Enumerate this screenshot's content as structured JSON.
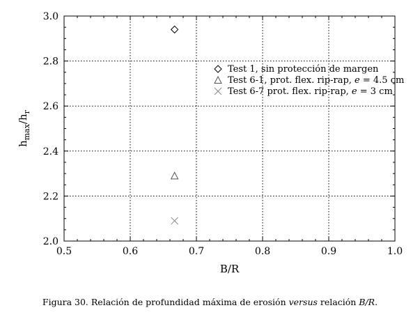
{
  "chart_data": {
    "type": "scatter",
    "title": "",
    "xlabel": "B/R",
    "ylabel": {
      "base": "h",
      "sub1": "max",
      "sep": "/h",
      "sub2": "r"
    },
    "xlim": [
      0.5,
      1.0
    ],
    "ylim": [
      2.0,
      3.0
    ],
    "xticks": [
      0.5,
      0.6,
      0.7,
      0.8,
      0.9,
      1.0
    ],
    "xtick_labels": [
      "0.5",
      "0.6",
      "0.7",
      "0.8",
      "0.9",
      "1.0"
    ],
    "yticks": [
      2.0,
      2.2,
      2.4,
      2.6,
      2.8,
      3.0
    ],
    "ytick_labels": [
      "2.0",
      "2.2",
      "2.4",
      "2.6",
      "2.8",
      "3.0"
    ],
    "grid": "dotted",
    "legend_position": "upper-right",
    "series": [
      {
        "name": "Test 1, sin protección de margen",
        "marker": "diamond",
        "color": "#000000",
        "points": [
          {
            "x": 0.667,
            "y": 2.94
          }
        ]
      },
      {
        "name_parts": [
          "Test 6-1, prot. flex. rip-rap, ",
          "e",
          " = 4.5 cm"
        ],
        "marker": "triangle",
        "color": "#555555",
        "points": [
          {
            "x": 0.667,
            "y": 2.29
          }
        ]
      },
      {
        "name_parts": [
          "Test 6-7 prot. flex. rip-rap, ",
          "e",
          " = 3 cm"
        ],
        "marker": "cross",
        "color": "#888888",
        "points": [
          {
            "x": 0.667,
            "y": 2.09
          }
        ]
      }
    ]
  },
  "caption": {
    "prefix": "Figura 30. Relación de profundidad máxima de erosión ",
    "italic1": "versus",
    "middle": " relación ",
    "italic2": "B/R",
    "suffix": "."
  }
}
